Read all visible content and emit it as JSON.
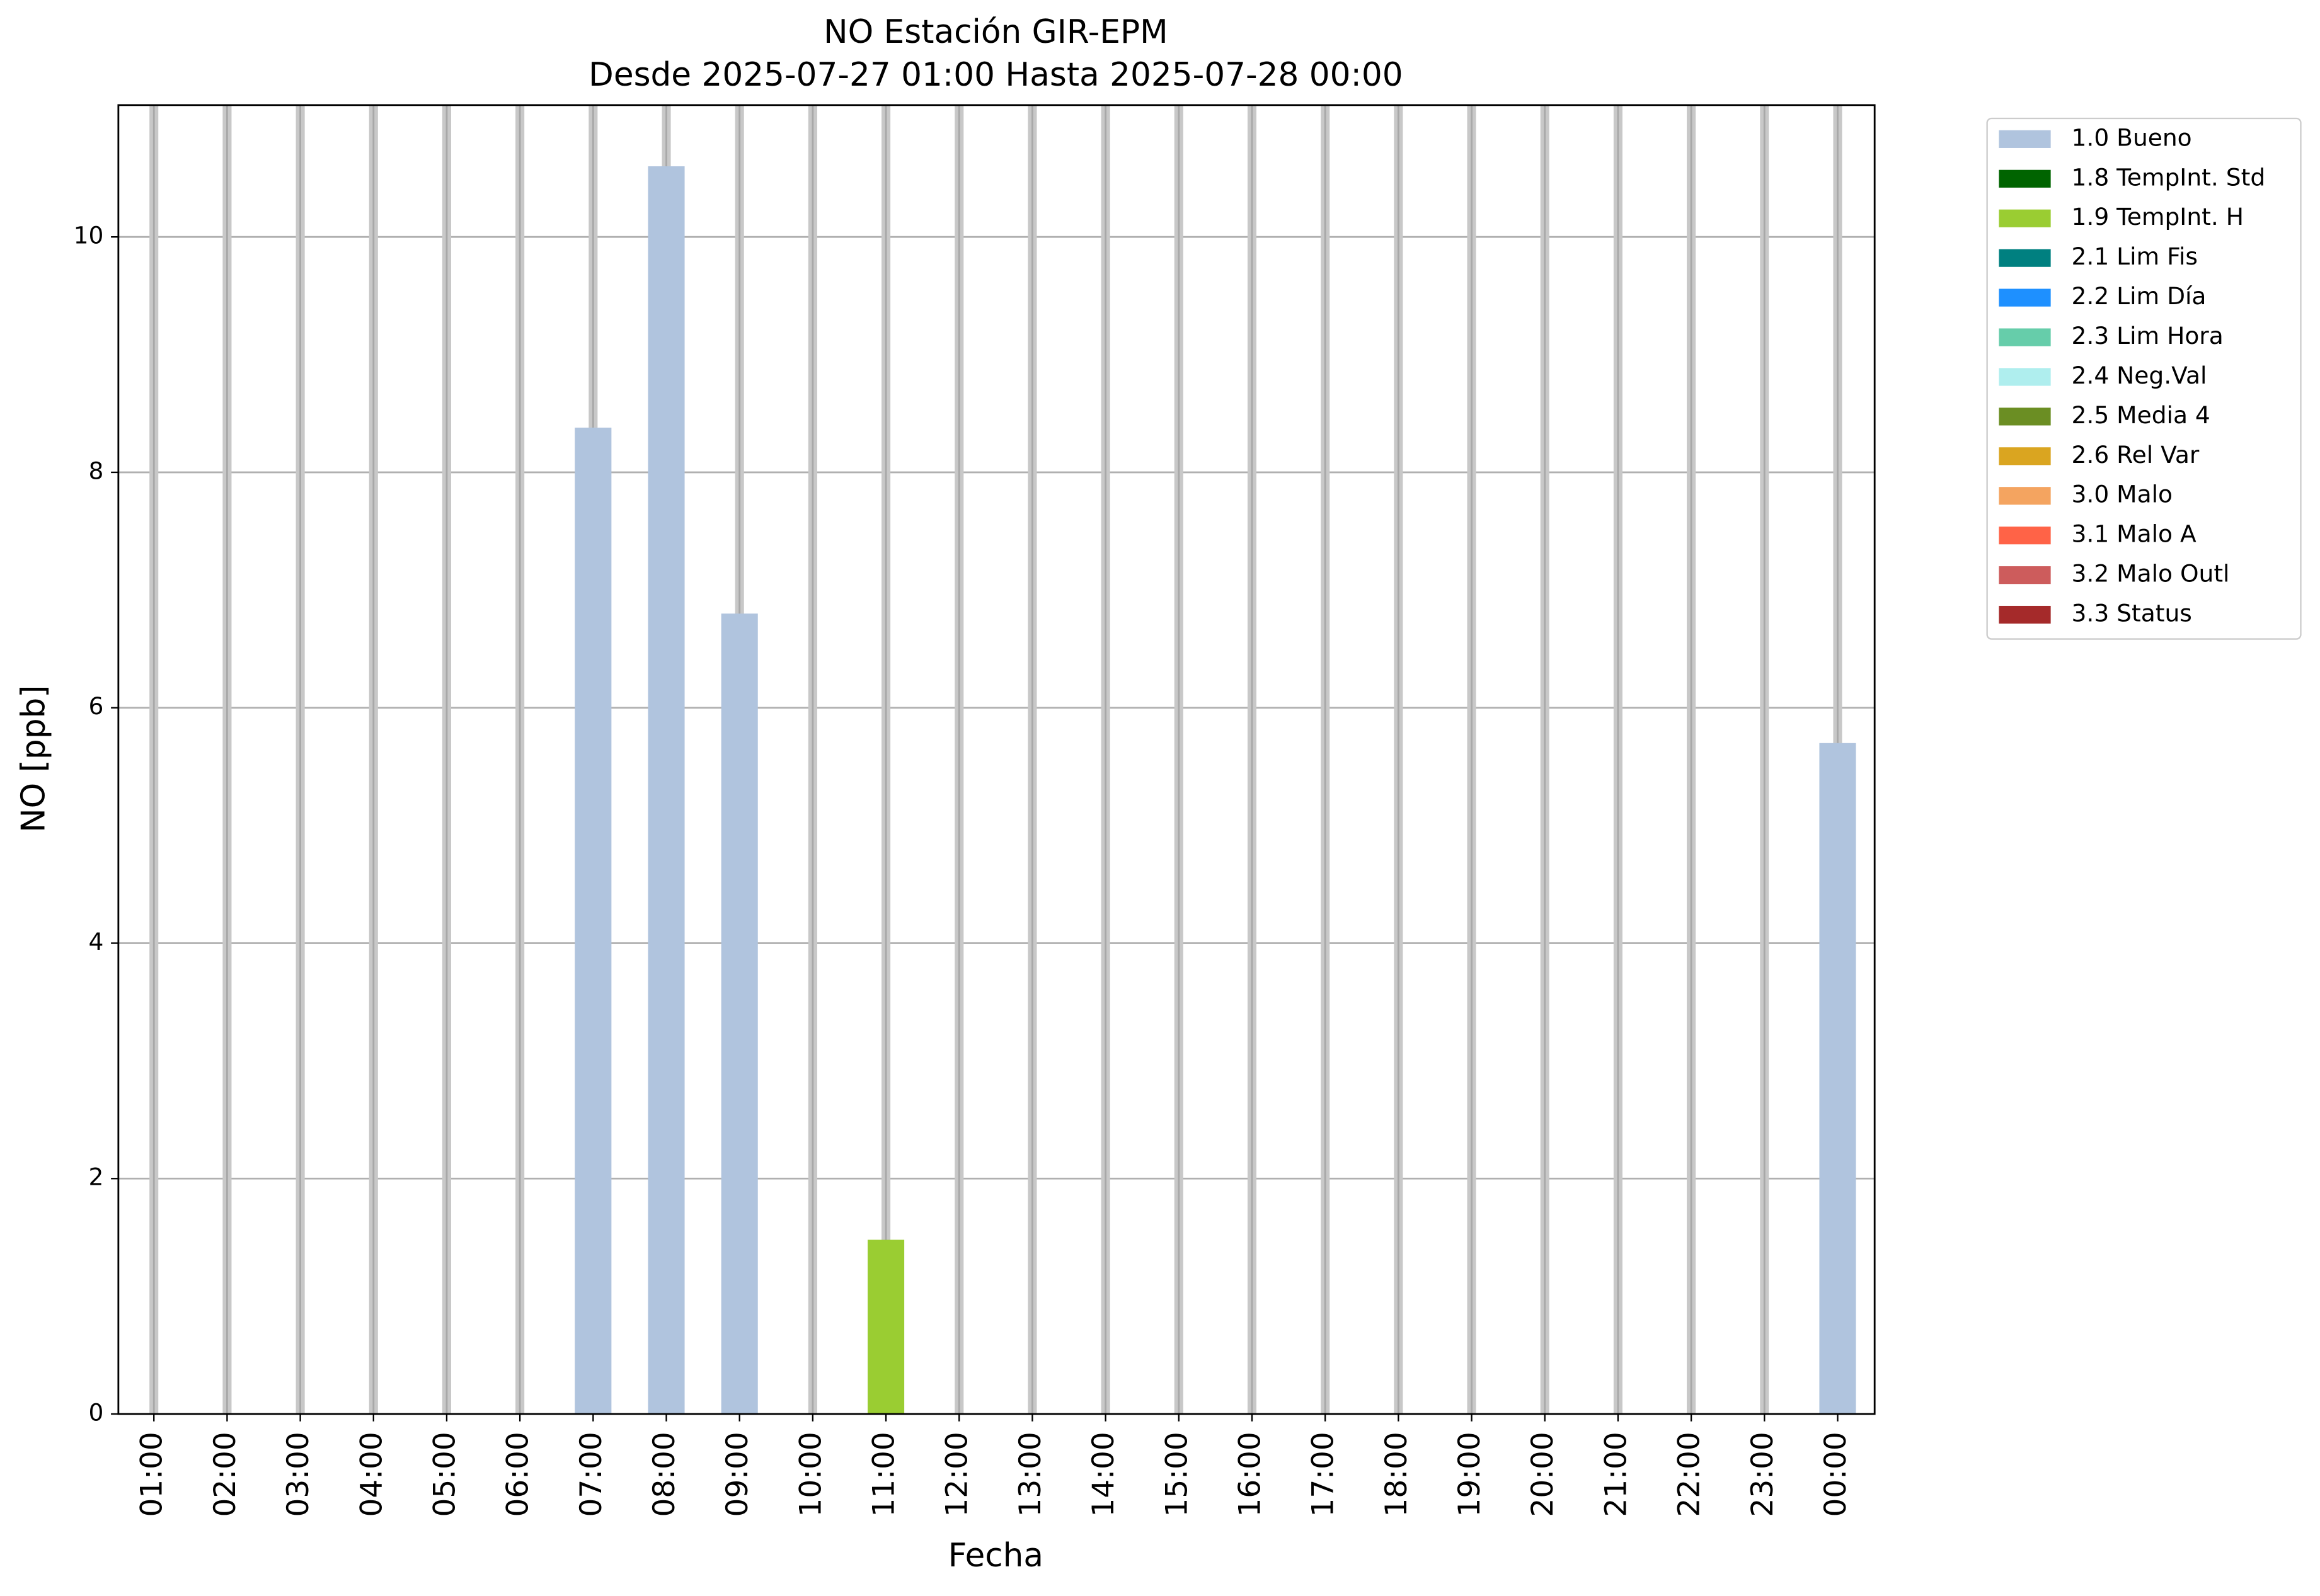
{
  "chart_data": {
    "type": "bar",
    "stacked": true,
    "title": "NO Estación GIR-EPM",
    "subtitle": "Desde 2025-07-27 01:00 Hasta 2025-07-28 00:00",
    "x_label": "Fecha",
    "y_label": "NO [ppb]",
    "categories": [
      "01:00",
      "02:00",
      "03:00",
      "04:00",
      "05:00",
      "06:00",
      "07:00",
      "08:00",
      "09:00",
      "10:00",
      "11:00",
      "12:00",
      "13:00",
      "14:00",
      "15:00",
      "16:00",
      "17:00",
      "18:00",
      "19:00",
      "20:00",
      "21:00",
      "22:00",
      "23:00",
      "00:00"
    ],
    "ylim": [
      0,
      11.12
    ],
    "yticks": [
      0,
      2,
      4,
      6,
      8,
      10
    ],
    "grid": true,
    "legend": "outside right",
    "series": [
      {
        "name": "1.0 Bueno",
        "color": "#b0c4de",
        "values": [
          null,
          null,
          null,
          null,
          null,
          null,
          8.38,
          10.6,
          6.8,
          null,
          null,
          null,
          null,
          null,
          null,
          null,
          null,
          null,
          null,
          null,
          null,
          null,
          null,
          5.7
        ]
      },
      {
        "name": "1.8 TempInt. Std",
        "color": "#006400",
        "values": [
          null,
          null,
          null,
          null,
          null,
          null,
          null,
          null,
          null,
          null,
          null,
          null,
          null,
          null,
          null,
          null,
          null,
          null,
          null,
          null,
          null,
          null,
          null,
          null
        ]
      },
      {
        "name": "1.9 TempInt. H",
        "color": "#9acd32",
        "values": [
          null,
          null,
          null,
          null,
          null,
          null,
          null,
          null,
          null,
          null,
          1.48,
          null,
          null,
          null,
          null,
          null,
          null,
          null,
          null,
          null,
          null,
          null,
          null,
          null
        ]
      },
      {
        "name": "2.1 Lim Fis",
        "color": "#008080",
        "values": [
          null,
          null,
          null,
          null,
          null,
          null,
          null,
          null,
          null,
          null,
          null,
          null,
          null,
          null,
          null,
          null,
          null,
          null,
          null,
          null,
          null,
          null,
          null,
          null
        ]
      },
      {
        "name": "2.2 Lim Día",
        "color": "#1e90ff",
        "values": [
          null,
          null,
          null,
          null,
          null,
          null,
          null,
          null,
          null,
          null,
          null,
          null,
          null,
          null,
          null,
          null,
          null,
          null,
          null,
          null,
          null,
          null,
          null,
          null
        ]
      },
      {
        "name": "2.3 Lim Hora",
        "color": "#66cdaa",
        "values": [
          null,
          null,
          null,
          null,
          null,
          null,
          null,
          null,
          null,
          null,
          null,
          null,
          null,
          null,
          null,
          null,
          null,
          null,
          null,
          null,
          null,
          null,
          null,
          null
        ]
      },
      {
        "name": "2.4 Neg.Val",
        "color": "#afeeee",
        "values": [
          null,
          null,
          null,
          null,
          null,
          null,
          null,
          null,
          null,
          null,
          null,
          null,
          null,
          null,
          null,
          null,
          null,
          null,
          null,
          null,
          null,
          null,
          null,
          null
        ]
      },
      {
        "name": "2.5 Media 4",
        "color": "#6b8e23",
        "values": [
          null,
          null,
          null,
          null,
          null,
          null,
          null,
          null,
          null,
          null,
          null,
          null,
          null,
          null,
          null,
          null,
          null,
          null,
          null,
          null,
          null,
          null,
          null,
          null
        ]
      },
      {
        "name": "2.6 Rel Var",
        "color": "#daa520",
        "values": [
          null,
          null,
          null,
          null,
          null,
          null,
          null,
          null,
          null,
          null,
          null,
          null,
          null,
          null,
          null,
          null,
          null,
          null,
          null,
          null,
          null,
          null,
          null,
          null
        ]
      },
      {
        "name": "3.0 Malo",
        "color": "#f4a460",
        "values": [
          null,
          null,
          null,
          null,
          null,
          null,
          null,
          null,
          null,
          null,
          null,
          null,
          null,
          null,
          null,
          null,
          null,
          null,
          null,
          null,
          null,
          null,
          null,
          null
        ]
      },
      {
        "name": "3.1 Malo A",
        "color": "#ff6347",
        "values": [
          null,
          null,
          null,
          null,
          null,
          null,
          null,
          null,
          null,
          null,
          null,
          null,
          null,
          null,
          null,
          null,
          null,
          null,
          null,
          null,
          null,
          null,
          null,
          null
        ]
      },
      {
        "name": "3.2 Malo Outl",
        "color": "#cd5c5c",
        "values": [
          null,
          null,
          null,
          null,
          null,
          null,
          null,
          null,
          null,
          null,
          null,
          null,
          null,
          null,
          null,
          null,
          null,
          null,
          null,
          null,
          null,
          null,
          null,
          null
        ]
      },
      {
        "name": "3.3 Status",
        "color": "#a52a2a",
        "values": [
          null,
          null,
          null,
          null,
          null,
          null,
          null,
          null,
          null,
          null,
          null,
          null,
          null,
          null,
          null,
          null,
          null,
          null,
          null,
          null,
          null,
          null,
          null,
          null
        ]
      }
    ]
  }
}
